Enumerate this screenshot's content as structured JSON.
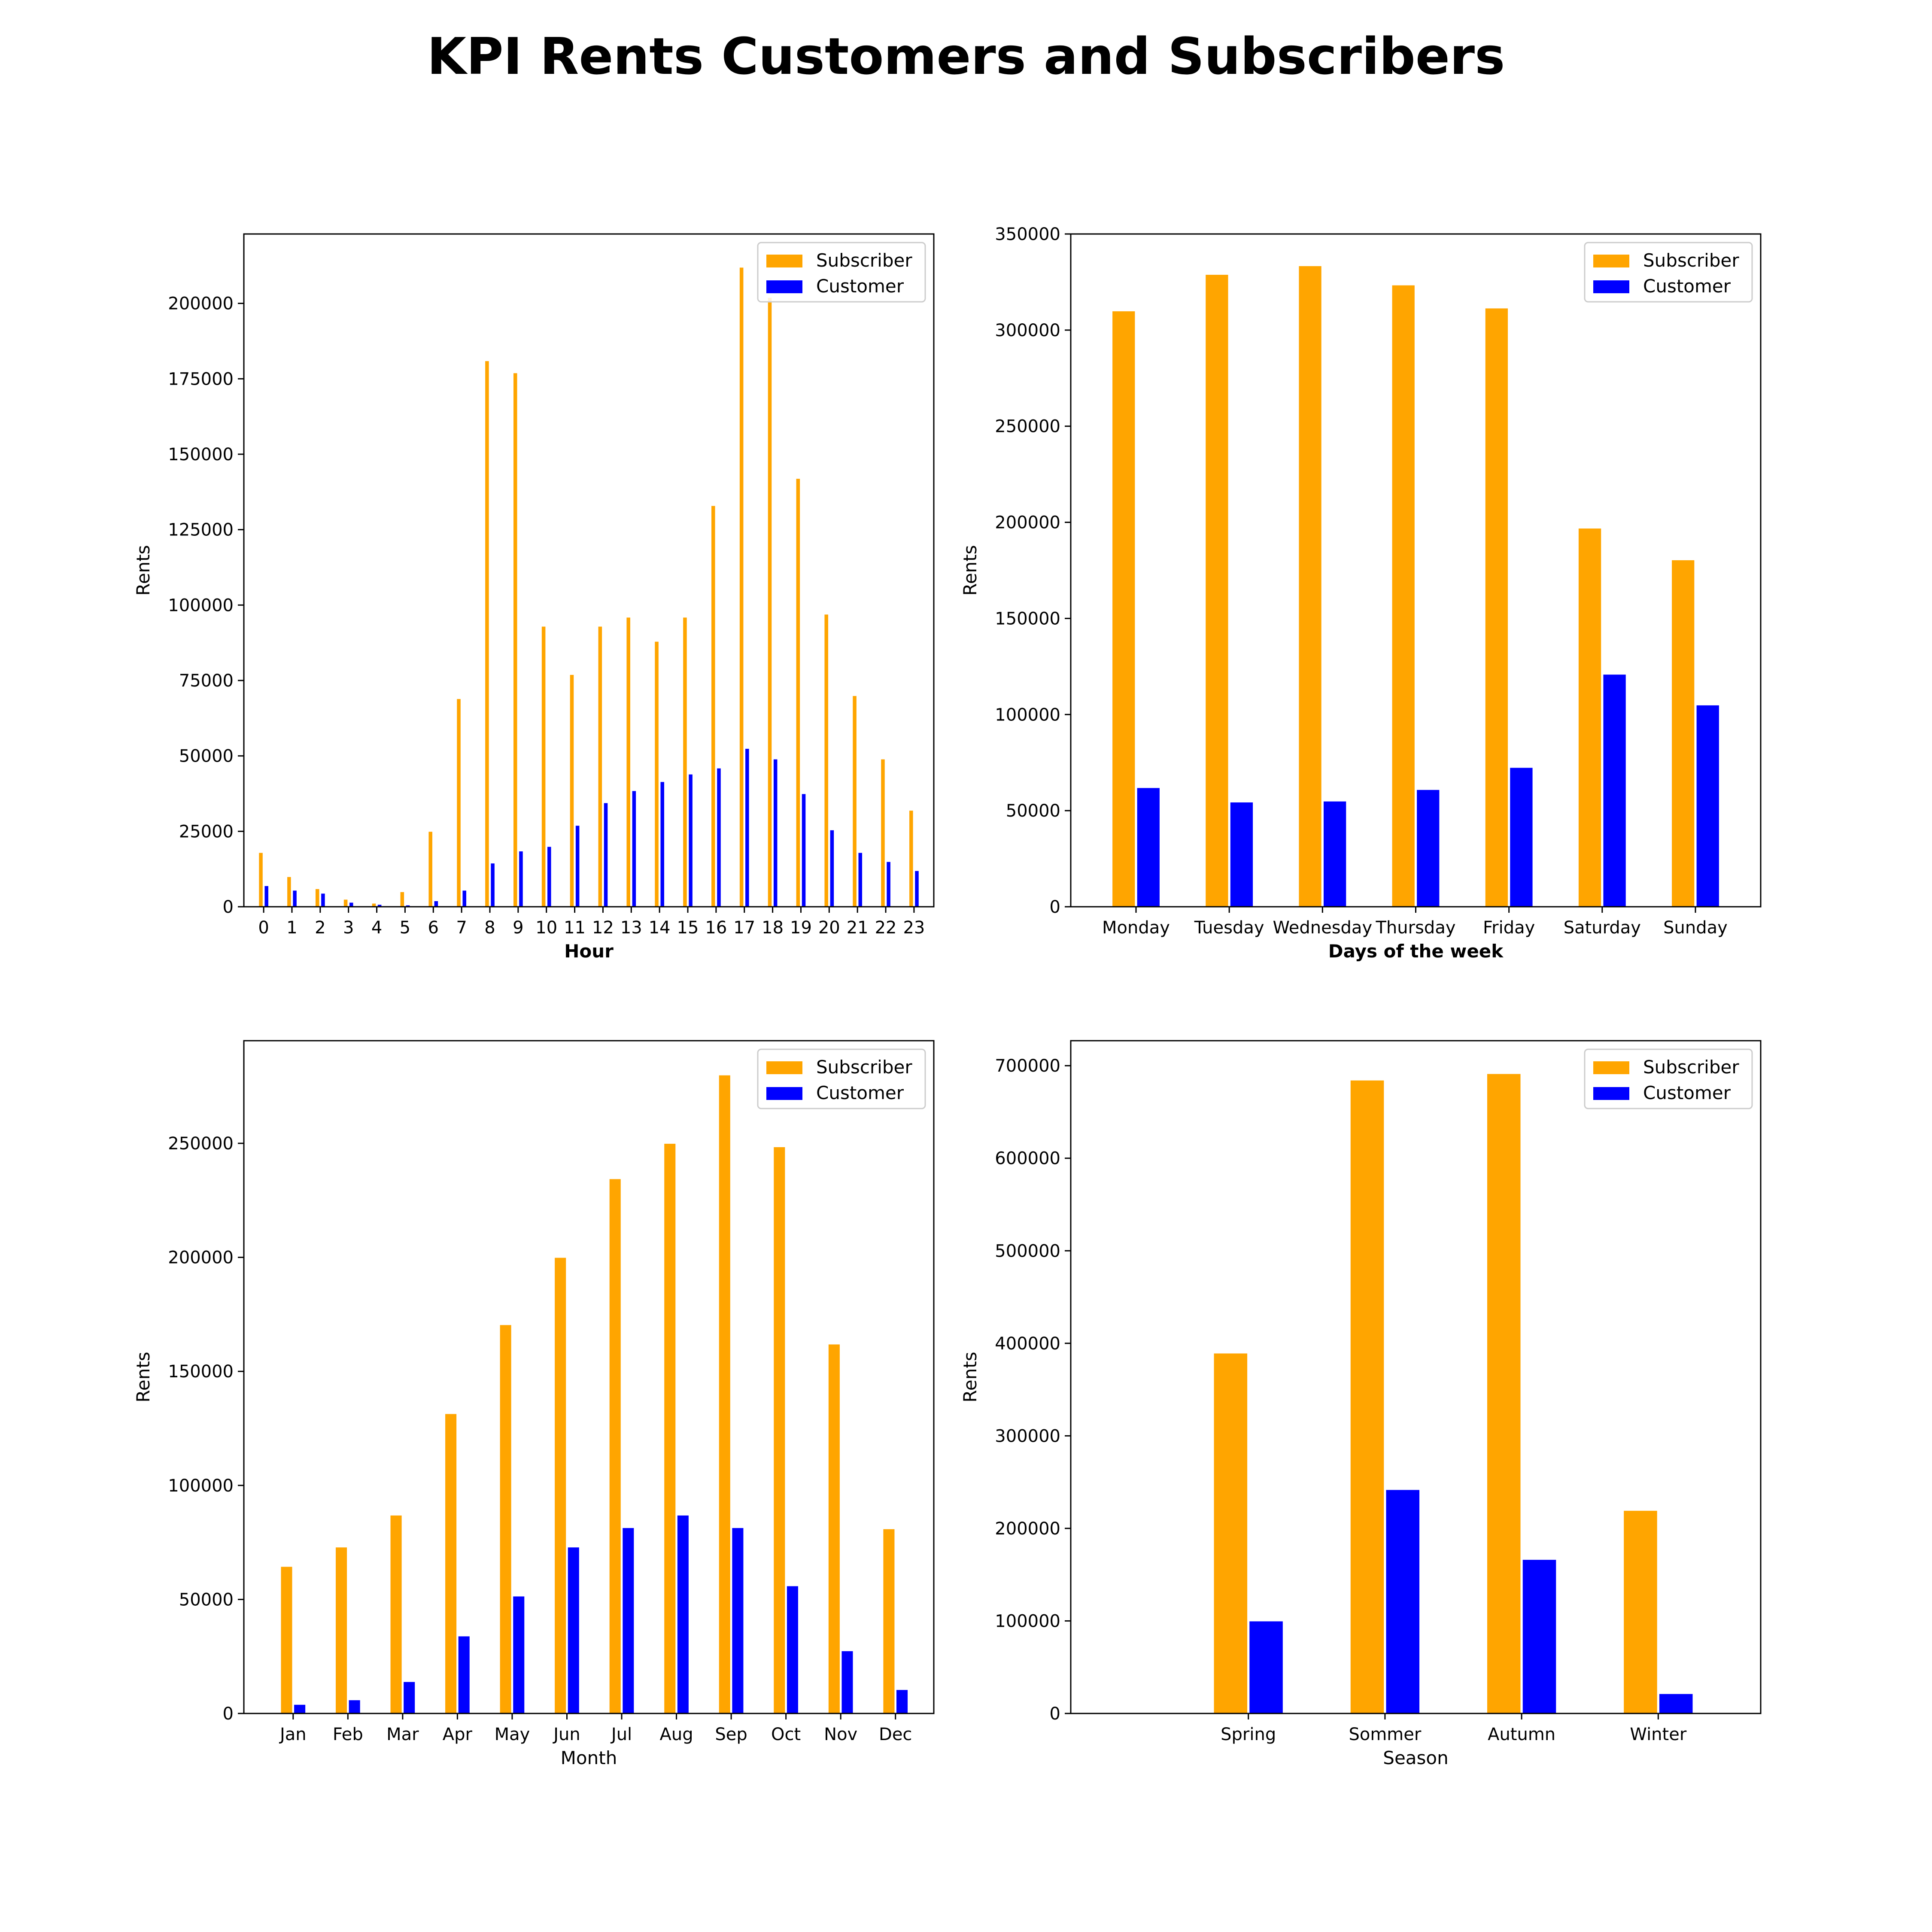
{
  "title": "KPI Rents Customers and Subscribers",
  "colors": {
    "subscriber": "#ffa500",
    "customer": "#0000ff",
    "axis": "#000000",
    "text": "#000000"
  },
  "chart_data": [
    {
      "type": "bar",
      "xlabel": "Hour",
      "ylabel": "Rents",
      "ylim": [
        0,
        223000
      ],
      "yticks": [
        0,
        25000,
        50000,
        75000,
        100000,
        125000,
        150000,
        175000,
        200000
      ],
      "grid": false,
      "legend": "top-right",
      "categories": [
        "0",
        "1",
        "2",
        "3",
        "4",
        "5",
        "6",
        "7",
        "8",
        "9",
        "10",
        "11",
        "12",
        "13",
        "14",
        "15",
        "16",
        "17",
        "18",
        "19",
        "20",
        "21",
        "22",
        "23"
      ],
      "series": [
        {
          "name": "Subscriber",
          "values": [
            18000,
            10000,
            6000,
            2500,
            1200,
            5000,
            25000,
            69000,
            181000,
            177000,
            93000,
            77000,
            93000,
            96000,
            88000,
            96000,
            133000,
            212000,
            202000,
            142000,
            97000,
            70000,
            49000,
            32000
          ]
        },
        {
          "name": "Customer",
          "values": [
            7000,
            5500,
            4500,
            1500,
            800,
            600,
            2000,
            5500,
            14500,
            18500,
            20000,
            27000,
            34500,
            38500,
            41500,
            44000,
            46000,
            52500,
            49000,
            37500,
            25500,
            18000,
            15000,
            12000
          ]
        }
      ]
    },
    {
      "type": "bar",
      "xlabel": "Days of the week",
      "ylabel": "Rents",
      "ylim": [
        0,
        350000
      ],
      "yticks": [
        0,
        50000,
        100000,
        150000,
        200000,
        250000,
        300000,
        350000
      ],
      "grid": false,
      "legend": "top-right",
      "categories": [
        "Monday",
        "Tuesday",
        "Wednesday",
        "Thursday",
        "Friday",
        "Saturday",
        "Sunday"
      ],
      "series": [
        {
          "name": "Subscriber",
          "values": [
            310000,
            329000,
            333500,
            323500,
            311500,
            197000,
            180500
          ]
        },
        {
          "name": "Customer",
          "values": [
            62000,
            54500,
            55000,
            61000,
            72500,
            121000,
            105000
          ]
        }
      ]
    },
    {
      "type": "bar",
      "xlabel": "Month",
      "ylabel": "Rents",
      "ylim": [
        0,
        295000
      ],
      "yticks": [
        0,
        50000,
        100000,
        150000,
        200000,
        250000
      ],
      "grid": false,
      "legend": "top-right",
      "categories": [
        "Jan",
        "Feb",
        "Mar",
        "Apr",
        "May",
        "Jun",
        "Jul",
        "Aug",
        "Sep",
        "Oct",
        "Nov",
        "Dec"
      ],
      "series": [
        {
          "name": "Subscriber",
          "values": [
            64500,
            73000,
            87000,
            131500,
            170500,
            200000,
            234500,
            250000,
            280000,
            248500,
            162000,
            81000
          ]
        },
        {
          "name": "Customer",
          "values": [
            4000,
            6000,
            14000,
            34000,
            51500,
            73000,
            81500,
            87000,
            81500,
            56000,
            27500,
            10500
          ]
        }
      ]
    },
    {
      "type": "bar",
      "xlabel": "Season",
      "ylabel": "Rents",
      "ylim": [
        0,
        727000
      ],
      "yticks": [
        0,
        100000,
        200000,
        300000,
        400000,
        500000,
        600000,
        700000
      ],
      "grid": false,
      "legend": "top-right",
      "categories": [
        "Spring",
        "Sommer",
        "Autumn",
        "Winter"
      ],
      "series": [
        {
          "name": "Subscriber",
          "values": [
            389500,
            684500,
            691500,
            219500
          ]
        },
        {
          "name": "Customer",
          "values": [
            100000,
            242000,
            166500,
            21500
          ]
        }
      ]
    }
  ]
}
